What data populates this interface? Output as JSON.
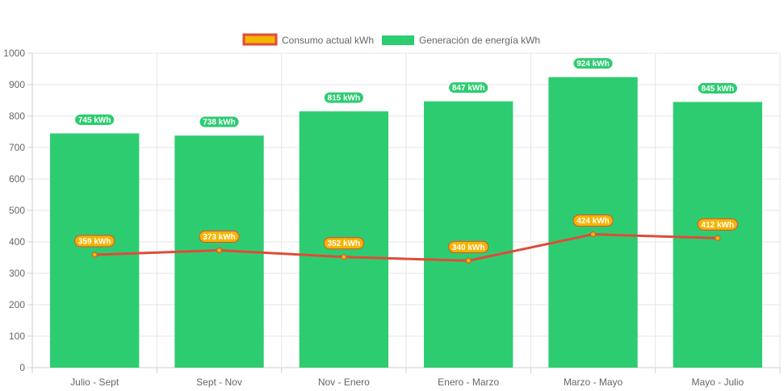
{
  "chart_data": {
    "type": "bar",
    "categories": [
      "Julio - Sept",
      "Sept - Nov",
      "Nov - Enero",
      "Enero - Marzo",
      "Marzo - Mayo",
      "Mayo - Julio"
    ],
    "series": [
      {
        "name": "Consumo actual kWh",
        "render": "line",
        "values": [
          359,
          373,
          352,
          340,
          424,
          412
        ],
        "labels": [
          "359 kWh",
          "373 kWh",
          "352 kWh",
          "340 kWh",
          "424 kWh",
          "412 kWh"
        ],
        "color": "#e04b3a",
        "point_color": "#f5b400"
      },
      {
        "name": "Generación de energía kWh",
        "render": "bar",
        "values": [
          745,
          738,
          815,
          847,
          924,
          845
        ],
        "labels": [
          "745 kWh",
          "738 kWh",
          "815 kWh",
          "847 kWh",
          "924 kWh",
          "845 kWh"
        ],
        "color": "#2ecc71"
      }
    ],
    "ylim": [
      0,
      1000
    ],
    "yticks": [
      "0",
      "100",
      "200",
      "300",
      "400",
      "500",
      "600",
      "700",
      "800",
      "900",
      "1000"
    ],
    "grid": true,
    "legend_position": "top"
  }
}
